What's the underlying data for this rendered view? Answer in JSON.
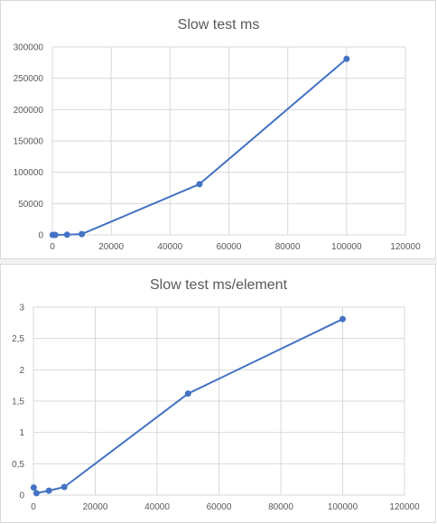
{
  "chart_data": [
    {
      "type": "scatter",
      "title": "Slow test ms",
      "xlim": [
        0,
        120000
      ],
      "ylim": [
        0,
        300000
      ],
      "xticks": [
        0,
        20000,
        40000,
        60000,
        80000,
        100000,
        120000
      ],
      "yticks": [
        0,
        50000,
        100000,
        150000,
        200000,
        250000,
        300000
      ],
      "xtick_labels": [
        "0",
        "20000",
        "40000",
        "60000",
        "80000",
        "100000",
        "120000"
      ],
      "ytick_labels": [
        "0",
        "50000",
        "100000",
        "150000",
        "200000",
        "250000",
        "300000"
      ],
      "grid": true,
      "legend": false,
      "color": "#4472c4",
      "series": [
        {
          "x": [
            100,
            500,
            1000,
            5000,
            10000,
            50000,
            100000
          ],
          "y": [
            10,
            20,
            40,
            300,
            1300,
            81000,
            281000
          ]
        }
      ]
    },
    {
      "type": "scatter",
      "title": "Slow test ms/element",
      "xlim": [
        0,
        120000
      ],
      "ylim": [
        0,
        3
      ],
      "xticks": [
        0,
        20000,
        40000,
        60000,
        80000,
        100000,
        120000
      ],
      "yticks": [
        0,
        0.5,
        1,
        1.5,
        2,
        2.5,
        3
      ],
      "xtick_labels": [
        "0",
        "20000",
        "40000",
        "60000",
        "80000",
        "100000",
        "120000"
      ],
      "ytick_labels": [
        "0",
        "0,5",
        "1",
        "1,5",
        "2",
        "2,5",
        "3"
      ],
      "grid": true,
      "legend": false,
      "color": "#4472c4",
      "series": [
        {
          "x": [
            100,
            1000,
            5000,
            10000,
            50000,
            100000
          ],
          "y": [
            0.12,
            0.03,
            0.07,
            0.13,
            1.62,
            2.81
          ]
        }
      ]
    }
  ]
}
